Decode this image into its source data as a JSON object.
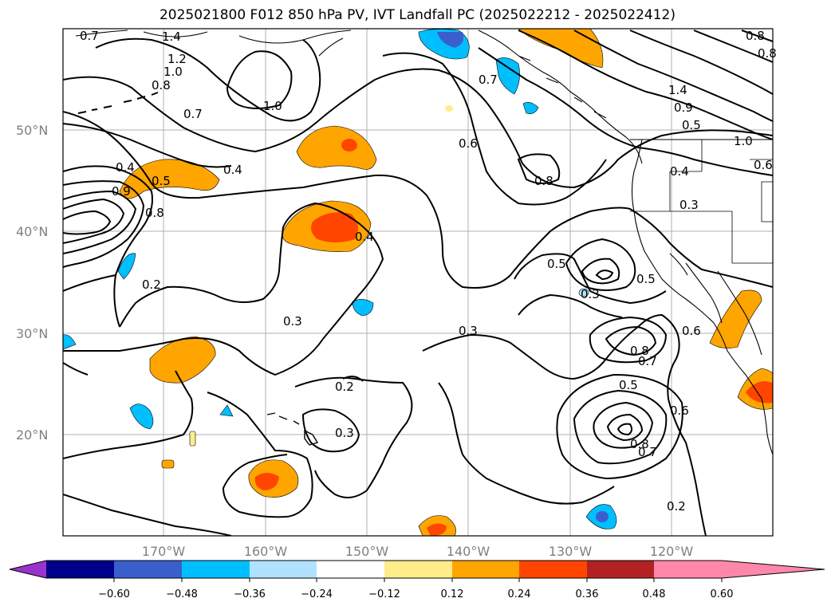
{
  "title": "2025021800 F012 850 hPa PV, IVT Landfall PC (2025022212 - 2025022412)",
  "lat_labels": [
    "50°N",
    "40°N",
    "30°N",
    "20°N"
  ],
  "lon_labels": [
    "170°W",
    "160°W",
    "150°W",
    "140°W",
    "130°W",
    "120°W"
  ],
  "contour_labels": [
    "0.7",
    "1.4",
    "1.2",
    "1.0",
    "0.8",
    "0.7",
    "1.0",
    "0.4",
    "0.5",
    "0.9",
    "0.8",
    "0.2",
    "0.7",
    "0.6",
    "0.8",
    "1.4",
    "0.9",
    "0.5",
    "1.0",
    "0.6",
    "0.4",
    "0.3",
    "0.4",
    "0.3",
    "0.5",
    "0.3",
    "0.5",
    "0.6",
    "0.8",
    "0.7",
    "0.3",
    "0.2",
    "0.3",
    "0.5",
    "0.6",
    "0.8",
    "0.7",
    "0.2",
    "0.8",
    "0.8",
    "0.4"
  ],
  "colorbar": {
    "ticks": [
      "−0.60",
      "−0.48",
      "−0.36",
      "−0.24",
      "−0.12",
      "0.12",
      "0.24",
      "0.36",
      "0.48",
      "0.60"
    ],
    "colors": [
      "#9933cc",
      "#00008b",
      "#3a5fcd",
      "#00bfff",
      "#b0e2ff",
      "#ffffff",
      "#ffec8b",
      "#ffa500",
      "#ff4500",
      "#b22222",
      "#ff88aa"
    ]
  },
  "colors": {
    "frame": "#000000",
    "grid": "#b0b0b0",
    "tick_text": "#808080"
  }
}
